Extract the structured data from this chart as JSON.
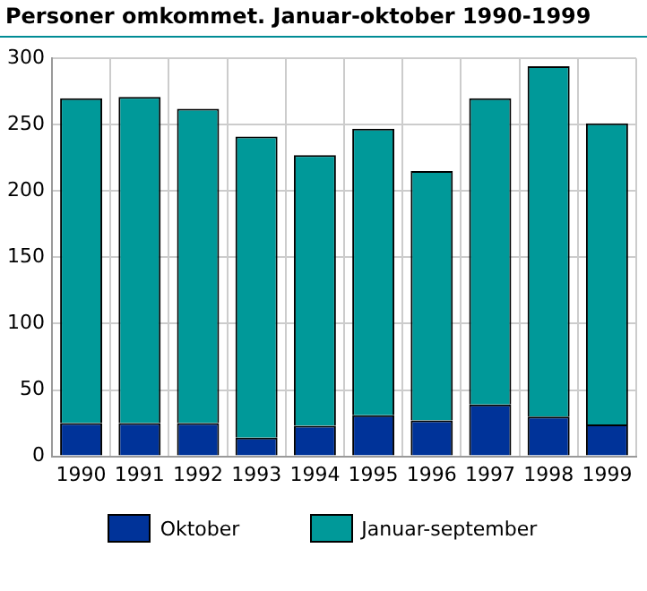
{
  "chart_data": {
    "type": "bar",
    "title": "Personer omkommet. Januar-oktober 1990-1999",
    "categories": [
      "1990",
      "1991",
      "1992",
      "1993",
      "1994",
      "1995",
      "1996",
      "1997",
      "1998",
      "1999"
    ],
    "series": [
      {
        "name": "Oktober",
        "color": "#003399",
        "values": [
          25,
          25,
          25,
          14,
          23,
          31,
          27,
          39,
          30,
          24
        ]
      },
      {
        "name": "Januar-september",
        "color": "#009999",
        "values": [
          245,
          246,
          237,
          227,
          204,
          216,
          188,
          231,
          264,
          227
        ]
      }
    ],
    "stacked": true,
    "ylim": [
      0,
      300
    ],
    "yticks": [
      0,
      50,
      100,
      150,
      200,
      250,
      300
    ],
    "grid": true,
    "legend": "bottom"
  }
}
